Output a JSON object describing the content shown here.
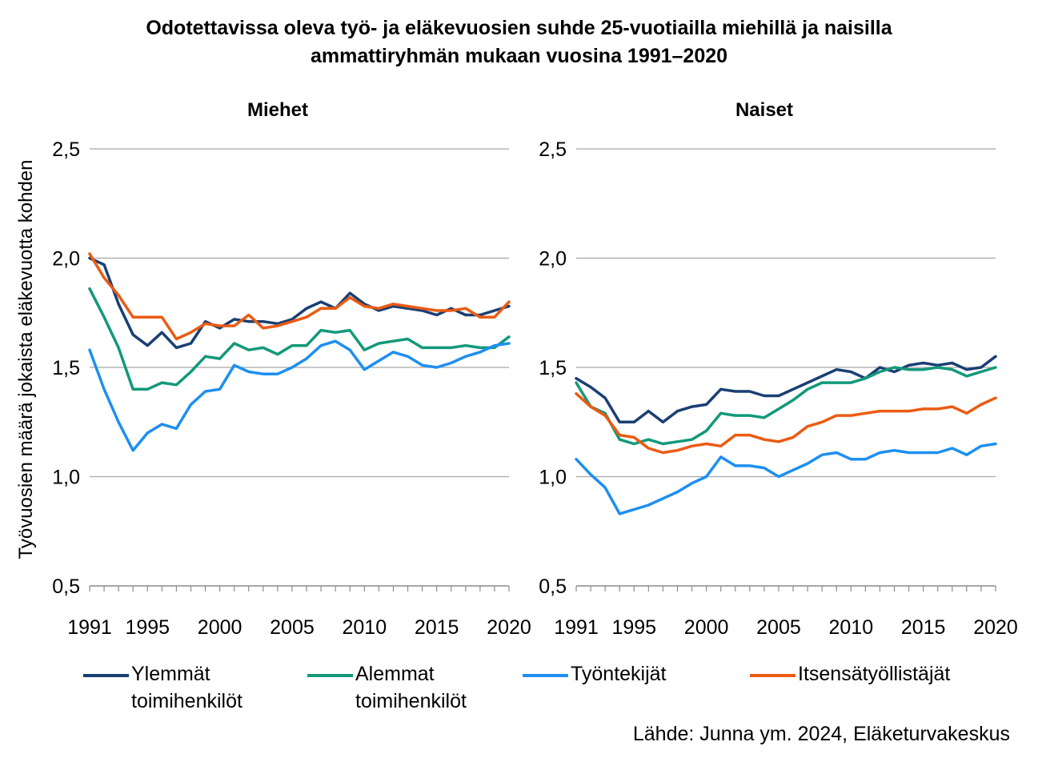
{
  "title": {
    "line1": "Odotettavissa oleva työ- ja eläkevuosien suhde 25-vuotiailla miehillä ja naisilla",
    "line2": "ammattiryhmän mukaan vuosina 1991–2020"
  },
  "source": "Lähde: Junna ym. 2024, Eläketurvakeskus",
  "legend": [
    {
      "label": "Ylemmät\ntoimihenkilöt",
      "color": "#1a3f73"
    },
    {
      "label": "Alemmat\ntoimihenkilöt",
      "color": "#12997a"
    },
    {
      "label": "Työntekijät",
      "color": "#1e8ff0"
    },
    {
      "label": "Itsensätyöllistäjät",
      "color": "#ea5b13"
    }
  ],
  "chart_data": [
    {
      "type": "line",
      "title": "Miehet",
      "ylabel": "Työvuosien määrä jokaista eläkevuotta kohden",
      "xlabel": "",
      "xlim": [
        1991,
        2020
      ],
      "ylim": [
        0.5,
        2.5
      ],
      "xticks": [
        "1991",
        "1995",
        "2000",
        "2005",
        "2010",
        "2015",
        "2020"
      ],
      "yticks": [
        "0,5",
        "1,0",
        "1,5",
        "2,0",
        "2,5"
      ],
      "grid": "horizontal",
      "x": [
        1991,
        1992,
        1993,
        1994,
        1995,
        1996,
        1997,
        1998,
        1999,
        2000,
        2001,
        2002,
        2003,
        2004,
        2005,
        2006,
        2007,
        2008,
        2009,
        2010,
        2011,
        2012,
        2013,
        2014,
        2015,
        2016,
        2017,
        2018,
        2019,
        2020
      ],
      "series": [
        {
          "name": "Ylemmät toimihenkilöt",
          "color": "#1a3f73",
          "values": [
            2.0,
            1.97,
            1.79,
            1.65,
            1.6,
            1.66,
            1.59,
            1.61,
            1.71,
            1.68,
            1.72,
            1.71,
            1.71,
            1.7,
            1.72,
            1.77,
            1.8,
            1.77,
            1.84,
            1.79,
            1.76,
            1.78,
            1.77,
            1.76,
            1.74,
            1.77,
            1.74,
            1.74,
            1.76,
            1.78
          ]
        },
        {
          "name": "Alemmat toimihenkilöt",
          "color": "#12997a",
          "values": [
            1.86,
            1.73,
            1.59,
            1.4,
            1.4,
            1.43,
            1.42,
            1.48,
            1.55,
            1.54,
            1.61,
            1.58,
            1.59,
            1.56,
            1.6,
            1.6,
            1.67,
            1.66,
            1.67,
            1.58,
            1.61,
            1.62,
            1.63,
            1.59,
            1.59,
            1.59,
            1.6,
            1.59,
            1.59,
            1.64
          ]
        },
        {
          "name": "Työntekijät",
          "color": "#1e8ff0",
          "values": [
            1.58,
            1.4,
            1.25,
            1.12,
            1.2,
            1.24,
            1.22,
            1.33,
            1.39,
            1.4,
            1.51,
            1.48,
            1.47,
            1.47,
            1.5,
            1.54,
            1.6,
            1.62,
            1.58,
            1.49,
            1.53,
            1.57,
            1.55,
            1.51,
            1.5,
            1.52,
            1.55,
            1.57,
            1.6,
            1.61
          ]
        },
        {
          "name": "Itsensätyöllistäjät",
          "color": "#ea5b13",
          "values": [
            2.02,
            1.91,
            1.83,
            1.73,
            1.73,
            1.73,
            1.63,
            1.66,
            1.7,
            1.69,
            1.69,
            1.74,
            1.68,
            1.69,
            1.71,
            1.73,
            1.77,
            1.77,
            1.82,
            1.78,
            1.77,
            1.79,
            1.78,
            1.77,
            1.76,
            1.76,
            1.77,
            1.73,
            1.73,
            1.8
          ]
        }
      ]
    },
    {
      "type": "line",
      "title": "Naiset",
      "xlabel": "",
      "xlim": [
        1991,
        2020
      ],
      "ylim": [
        0.5,
        2.5
      ],
      "xticks": [
        "1991",
        "1995",
        "2000",
        "2005",
        "2010",
        "2015",
        "2020"
      ],
      "yticks": [
        "0,5",
        "1,0",
        "1,5",
        "2,0",
        "2,5"
      ],
      "grid": "horizontal",
      "x": [
        1991,
        1992,
        1993,
        1994,
        1995,
        1996,
        1997,
        1998,
        1999,
        2000,
        2001,
        2002,
        2003,
        2004,
        2005,
        2006,
        2007,
        2008,
        2009,
        2010,
        2011,
        2012,
        2013,
        2014,
        2015,
        2016,
        2017,
        2018,
        2019,
        2020
      ],
      "series": [
        {
          "name": "Ylemmät toimihenkilöt",
          "color": "#1a3f73",
          "values": [
            1.45,
            1.41,
            1.36,
            1.25,
            1.25,
            1.3,
            1.25,
            1.3,
            1.32,
            1.33,
            1.4,
            1.39,
            1.39,
            1.37,
            1.37,
            1.4,
            1.43,
            1.46,
            1.49,
            1.48,
            1.45,
            1.5,
            1.48,
            1.51,
            1.52,
            1.51,
            1.52,
            1.49,
            1.5,
            1.55
          ]
        },
        {
          "name": "Alemmat toimihenkilöt",
          "color": "#12997a",
          "values": [
            1.43,
            1.32,
            1.29,
            1.17,
            1.15,
            1.17,
            1.15,
            1.16,
            1.17,
            1.21,
            1.29,
            1.28,
            1.28,
            1.27,
            1.31,
            1.35,
            1.4,
            1.43,
            1.43,
            1.43,
            1.45,
            1.48,
            1.5,
            1.49,
            1.49,
            1.5,
            1.49,
            1.46,
            1.48,
            1.5
          ]
        },
        {
          "name": "Työntekijät",
          "color": "#1e8ff0",
          "values": [
            1.08,
            1.01,
            0.95,
            0.83,
            0.85,
            0.87,
            0.9,
            0.93,
            0.97,
            1.0,
            1.09,
            1.05,
            1.05,
            1.04,
            1.0,
            1.03,
            1.06,
            1.1,
            1.11,
            1.08,
            1.08,
            1.11,
            1.12,
            1.11,
            1.11,
            1.11,
            1.13,
            1.1,
            1.14,
            1.15
          ]
        },
        {
          "name": "Itsensätyöllistäjät",
          "color": "#ea5b13",
          "values": [
            1.38,
            1.32,
            1.28,
            1.19,
            1.18,
            1.13,
            1.11,
            1.12,
            1.14,
            1.15,
            1.14,
            1.19,
            1.19,
            1.17,
            1.16,
            1.18,
            1.23,
            1.25,
            1.28,
            1.28,
            1.29,
            1.3,
            1.3,
            1.3,
            1.31,
            1.31,
            1.32,
            1.29,
            1.33,
            1.36
          ]
        }
      ]
    }
  ]
}
